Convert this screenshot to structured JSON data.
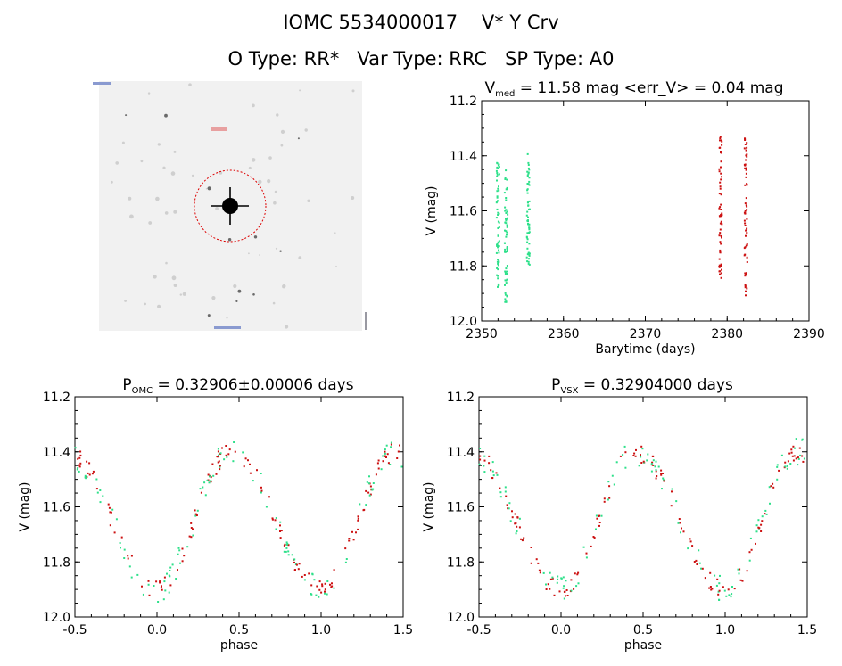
{
  "header": {
    "title_line1": "IOMC 5534000017    V* Y Crv",
    "title_line2": "O Type: RR*   Var Type: RRC   SP Type: A0"
  },
  "colors": {
    "omc": "#2ee08a",
    "vsx": "#cc1111",
    "axis": "#000000",
    "image_circle": "#dd0000"
  },
  "chart_data": [
    {
      "type": "image",
      "title": "",
      "annotations": [
        "finder image with red circle marking target star"
      ]
    },
    {
      "type": "scatter",
      "title_main": "V",
      "title_sub": "med",
      "title_rest": " = 11.58 mag <err_V> = 0.04 mag",
      "xlabel": "Barytime (days)",
      "ylabel": "V (mag)",
      "xlim": [
        2350,
        2390
      ],
      "ylim": [
        12.0,
        11.2
      ],
      "xticks": [
        2350,
        2360,
        2370,
        2380,
        2390
      ],
      "yticks": [
        11.2,
        11.4,
        11.6,
        11.8,
        12.0
      ],
      "series": [
        {
          "color_key": "omc",
          "clusters": [
            {
              "x": 2352.0,
              "y_range": [
                11.42,
                11.88
              ]
            },
            {
              "x": 2353.0,
              "y_range": [
                11.45,
                11.95
              ]
            },
            {
              "x": 2355.7,
              "y_range": [
                11.39,
                11.8
              ]
            }
          ]
        },
        {
          "color_key": "vsx",
          "clusters": [
            {
              "x": 2379.2,
              "y_range": [
                11.33,
                11.86
              ]
            },
            {
              "x": 2382.3,
              "y_range": [
                11.33,
                11.92
              ]
            }
          ]
        }
      ]
    },
    {
      "type": "scatter",
      "title_main": "P",
      "title_sub": "OMC",
      "title_rest": " = 0.32906±0.00006 days",
      "xlabel": "phase",
      "ylabel": "V (mag)",
      "xlim": [
        -0.5,
        1.5
      ],
      "ylim": [
        12.0,
        11.2
      ],
      "xticks": [
        "-0.5",
        "0.0",
        "0.5",
        "1.0",
        "1.5"
      ],
      "yticks": [
        11.2,
        11.4,
        11.6,
        11.8,
        12.0
      ],
      "light_curve": {
        "max_phase": 0.45,
        "min_phase": 0.0,
        "bright_mag": 11.4,
        "faint_mag": 11.9,
        "rise_width": 0.28
      }
    },
    {
      "type": "scatter",
      "title_main": "P",
      "title_sub": "VSX",
      "title_rest": " = 0.32904000 days",
      "xlabel": "phase",
      "ylabel": "V (mag)",
      "xlim": [
        -0.5,
        1.5
      ],
      "ylim": [
        12.0,
        11.2
      ],
      "xticks": [
        "-0.5",
        "0.0",
        "0.5",
        "1.0",
        "1.5"
      ],
      "yticks": [
        11.2,
        11.4,
        11.6,
        11.8,
        12.0
      ],
      "light_curve": {
        "max_phase": 0.45,
        "min_phase": 0.0,
        "bright_mag": 11.4,
        "faint_mag": 11.9,
        "rise_width": 0.28
      }
    }
  ]
}
